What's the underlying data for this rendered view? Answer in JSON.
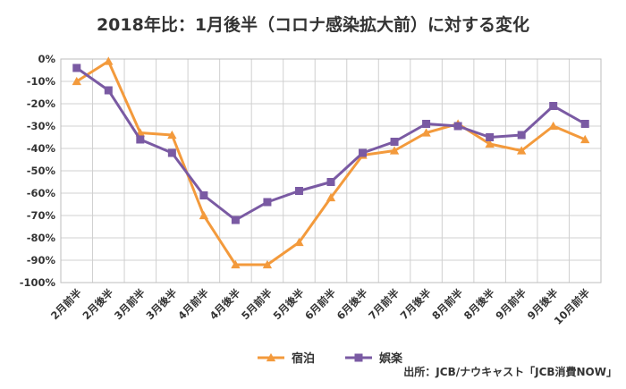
{
  "chart_data": {
    "type": "line",
    "title": "2018年比：1月後半（コロナ感染拡大前）に対する変化",
    "categories": [
      "2月前半",
      "2月後半",
      "3月前半",
      "3月後半",
      "4月前半",
      "4月後半",
      "5月前半",
      "5月後半",
      "6月前半",
      "6月後半",
      "7月前半",
      "7月後半",
      "8月前半",
      "8月後半",
      "9月前半",
      "9月後半",
      "10月前半"
    ],
    "series": [
      {
        "name": "宿泊",
        "color": "#f39a3c",
        "marker": "triangle",
        "values": [
          -10,
          -1,
          -33,
          -34,
          -70,
          -92,
          -92,
          -82,
          -62,
          -43,
          -41,
          -33,
          -29,
          -38,
          -41,
          -30,
          -36
        ]
      },
      {
        "name": "娯楽",
        "color": "#7a5aa3",
        "marker": "square",
        "values": [
          -4,
          -14,
          -36,
          -42,
          -61,
          -72,
          -64,
          -59,
          -55,
          -42,
          -37,
          -29,
          -30,
          -35,
          -34,
          -21,
          -29
        ]
      }
    ],
    "ylim": [
      -100,
      0
    ],
    "yticks": [
      0,
      -10,
      -20,
      -30,
      -40,
      -50,
      -60,
      -70,
      -80,
      -90,
      -100
    ],
    "ytick_labels": [
      "0%",
      "-10%",
      "-20%",
      "-30%",
      "-40%",
      "-50%",
      "-60%",
      "-70%",
      "-80%",
      "-90%",
      "-100%"
    ],
    "grid": true,
    "legend_position": "bottom-center",
    "xlabel": "",
    "ylabel": ""
  },
  "source_text": "出所：JCB/ナウキャスト「JCB消費NOW」"
}
